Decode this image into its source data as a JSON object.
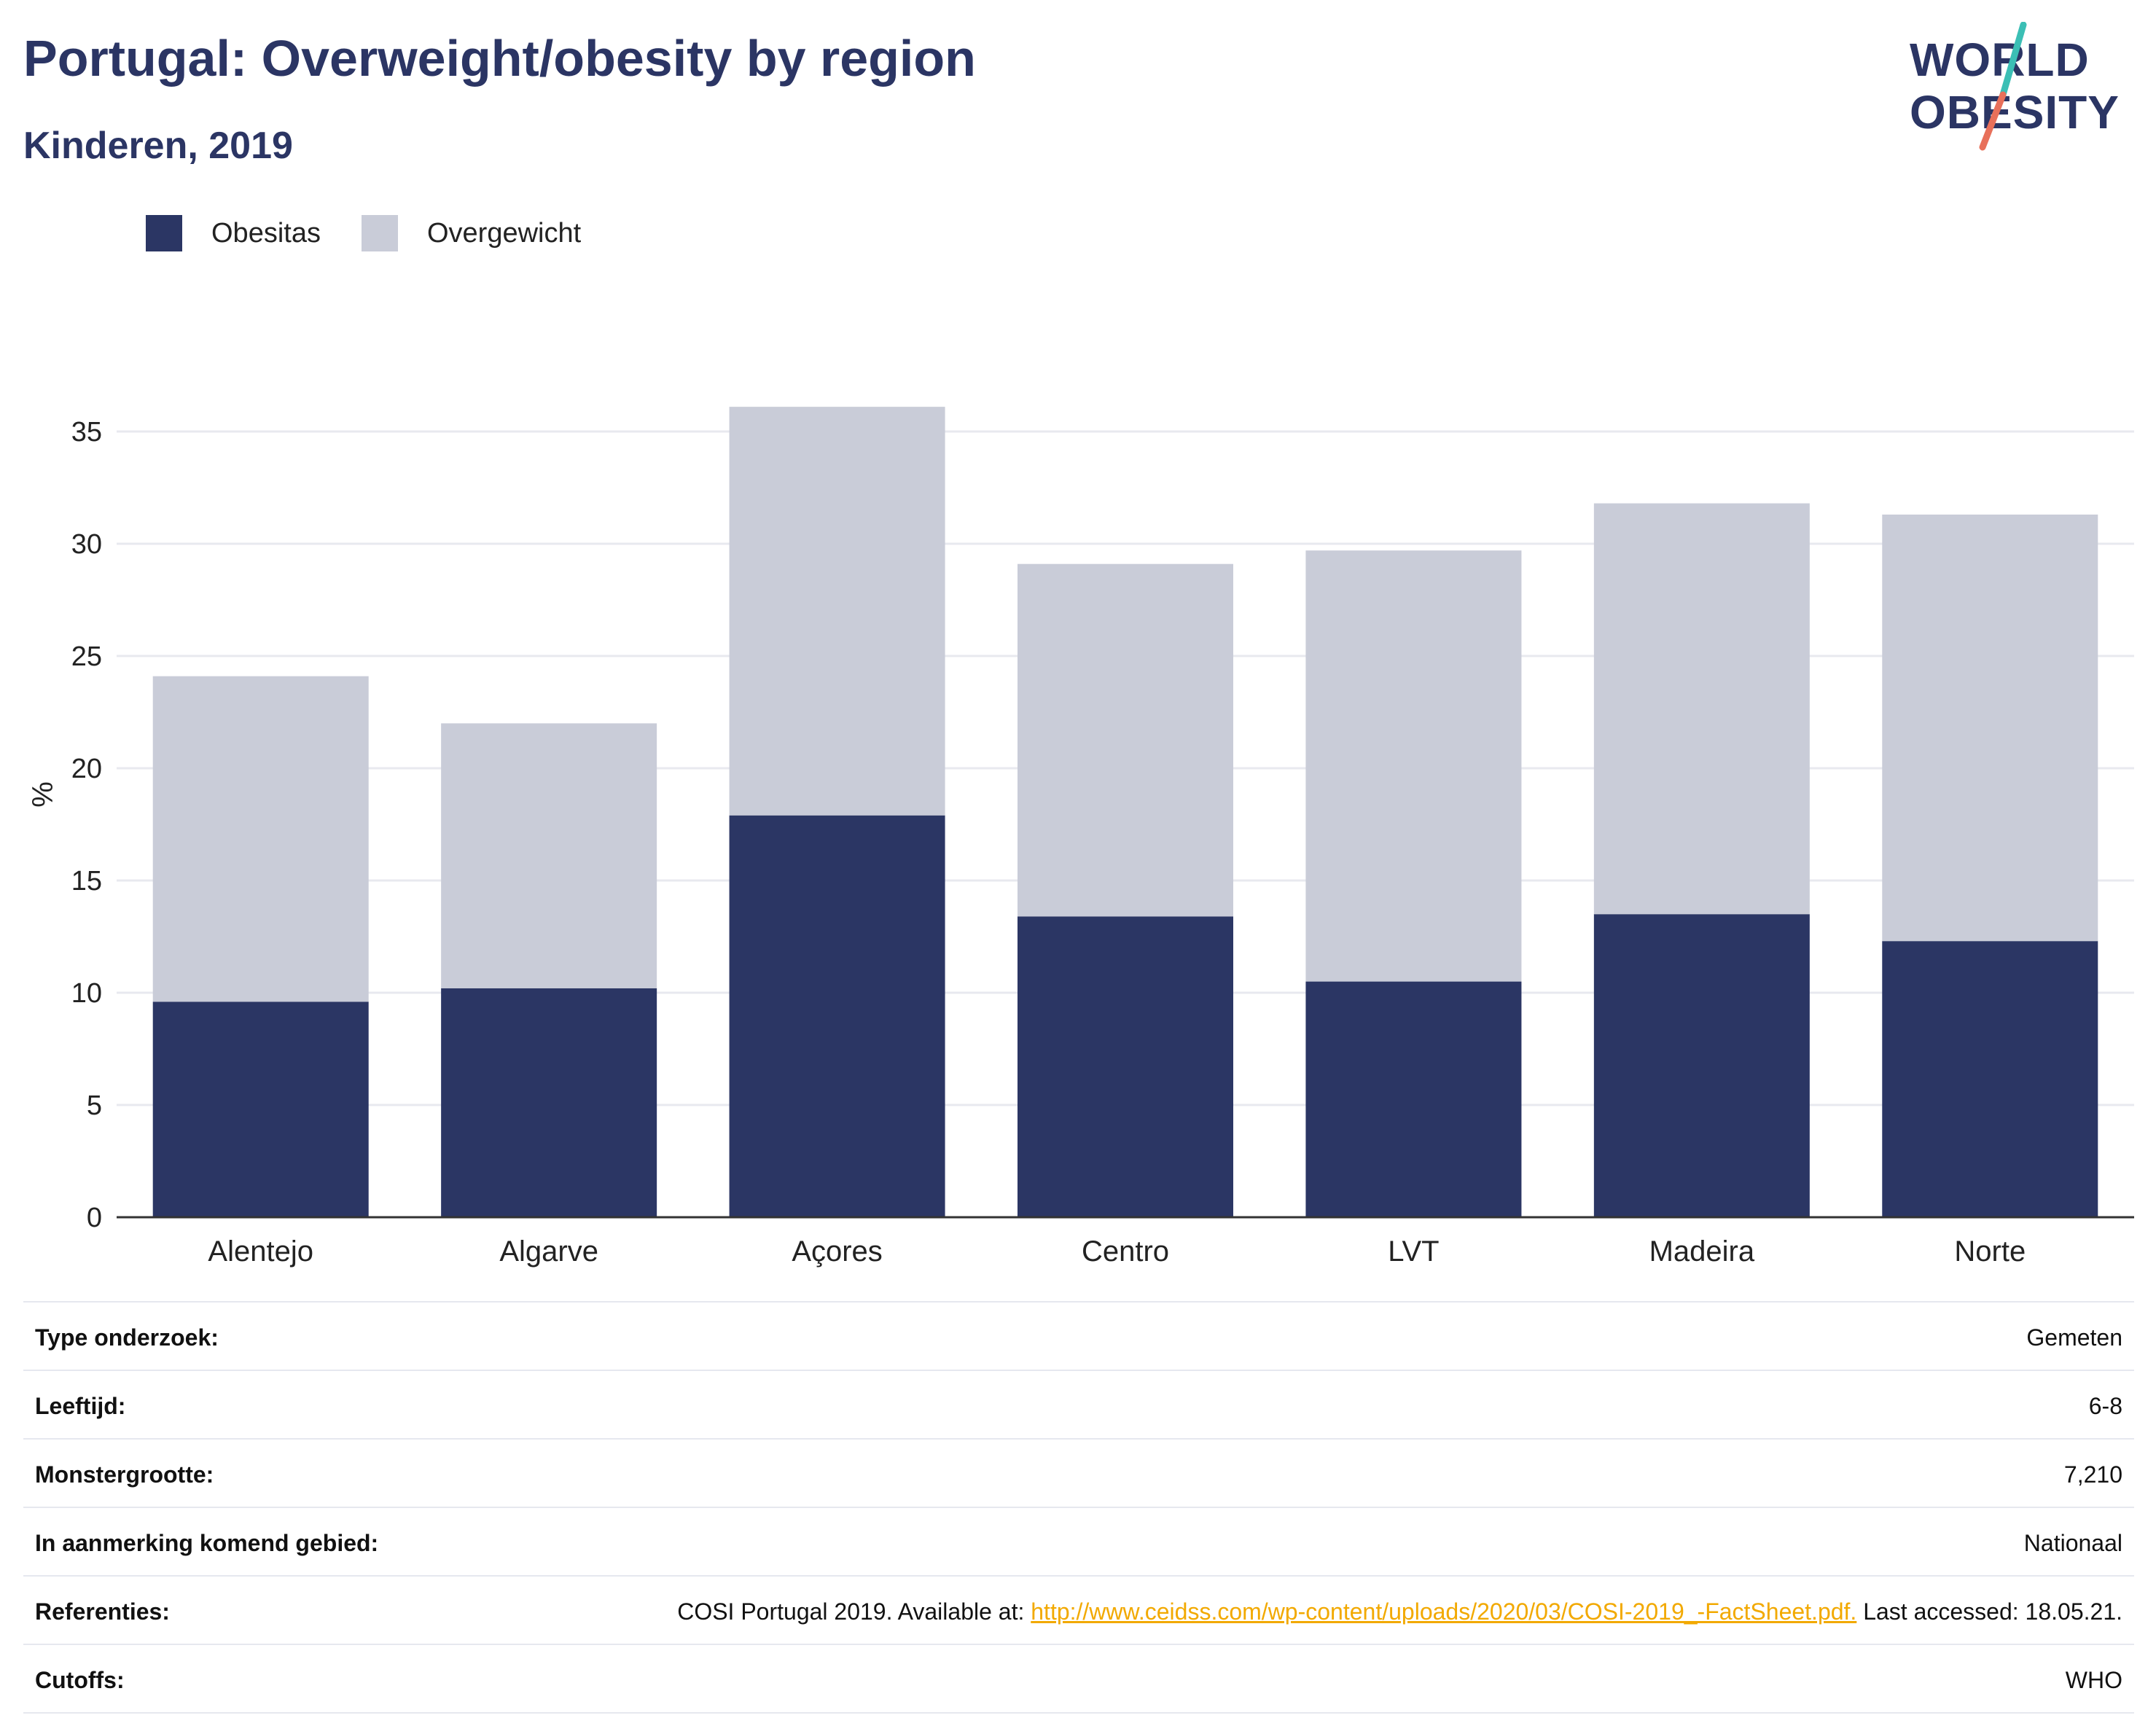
{
  "header": {
    "title": "Portugal: Overweight/obesity by region",
    "subtitle": "Kinderen, 2019"
  },
  "logo": {
    "line1": "WORLD",
    "line2": "OBESITY",
    "slash_colors": [
      "#3bbfb5",
      "#e8705a"
    ]
  },
  "colors": {
    "obesitas": "#2b3664",
    "overgewicht": "#c9ccd8",
    "axis": "#333333",
    "grid": "#e8e9ef"
  },
  "legend": [
    {
      "label": "Obesitas",
      "color": "#2b3664"
    },
    {
      "label": "Overgewicht",
      "color": "#c9ccd8"
    }
  ],
  "chart_data": {
    "type": "bar",
    "stacked": true,
    "categories": [
      "Alentejo",
      "Algarve",
      "Açores",
      "Centro",
      "LVT",
      "Madeira",
      "Norte"
    ],
    "series": [
      {
        "name": "Obesitas",
        "values": [
          9.6,
          10.2,
          17.9,
          13.4,
          10.5,
          13.5,
          12.3
        ]
      },
      {
        "name": "Overgewicht",
        "values": [
          14.5,
          11.8,
          18.2,
          15.7,
          19.2,
          18.3,
          19.0
        ]
      }
    ],
    "ylabel": "%",
    "ylim": [
      0,
      37
    ],
    "yticks": [
      0,
      5,
      10,
      15,
      20,
      25,
      30,
      35
    ],
    "grid": true,
    "legend_position": "top-left"
  },
  "meta": [
    {
      "key": "Type onderzoek:",
      "value": "Gemeten"
    },
    {
      "key": "Leeftijd:",
      "value": "6-8"
    },
    {
      "key": "Monstergrootte:",
      "value": "7,210"
    },
    {
      "key": "In aanmerking komend gebied:",
      "value": "Nationaal"
    },
    {
      "key": "Referenties:",
      "value_prefix": "COSI Portugal 2019. Available at: ",
      "link": "http://www.ceidss.com/wp-content/uploads/2020/03/COSI-2019_-FactSheet.pdf.",
      "value_suffix": " Last accessed: 18.05.21."
    },
    {
      "key": "Cutoffs:",
      "value": "WHO"
    }
  ]
}
